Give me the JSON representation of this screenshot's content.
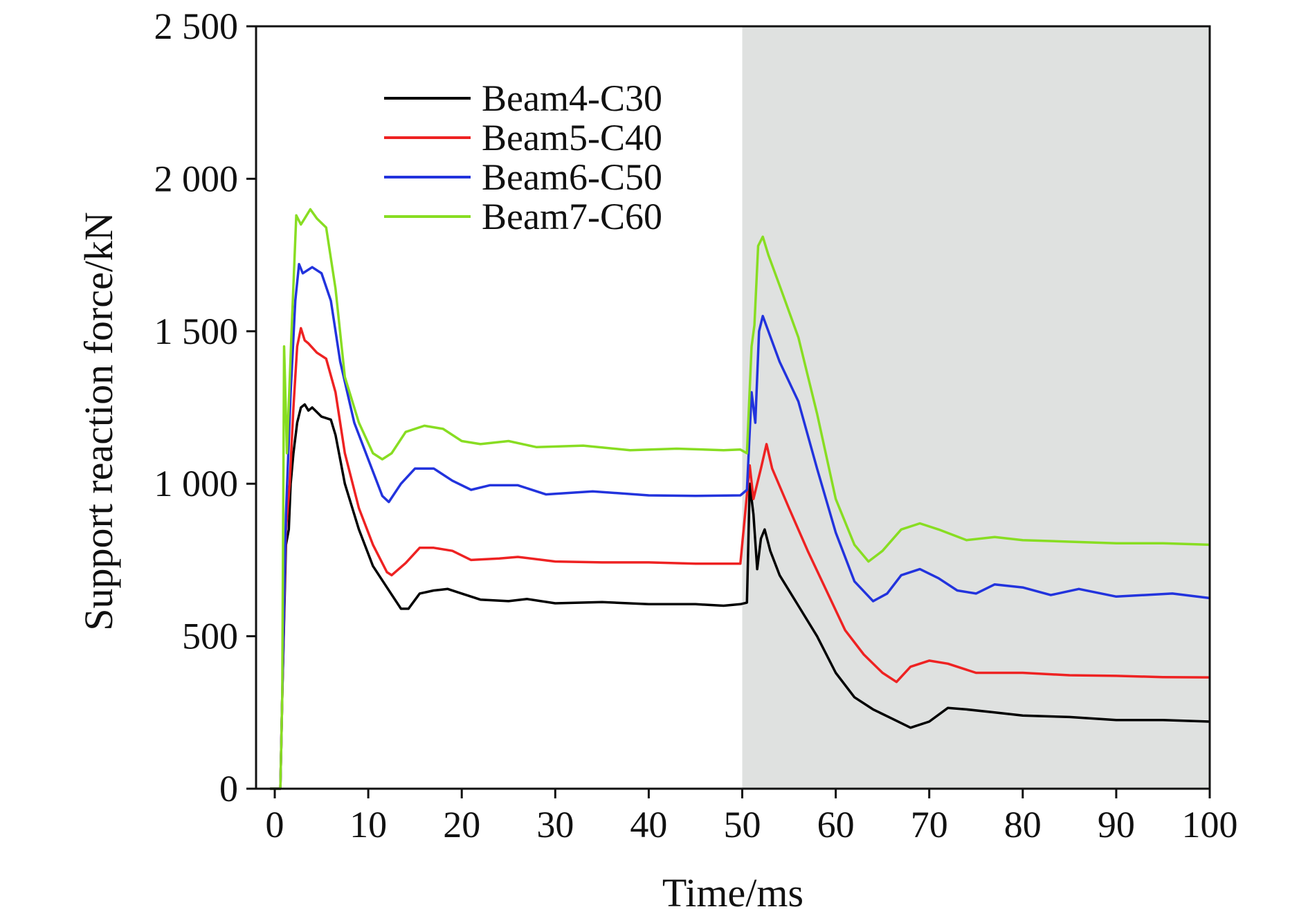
{
  "chart_data": {
    "type": "line",
    "xlabel": "Time/ms",
    "ylabel": "Support reaction force/kN",
    "xlim": [
      -2,
      100
    ],
    "ylim": [
      0,
      2500
    ],
    "x_ticks": [
      0,
      10,
      20,
      30,
      40,
      50,
      60,
      70,
      80,
      90,
      100
    ],
    "y_ticks": [
      0,
      500,
      1000,
      1500,
      2000,
      2500
    ],
    "y_tick_labels": [
      "0",
      "500",
      "1 000",
      "1 500",
      "2 000",
      "2 500"
    ],
    "shaded_region": {
      "x_start": 50,
      "x_end": 100,
      "color": "#dfe1e0"
    },
    "legend_position": "top-left",
    "grid": false,
    "series": [
      {
        "name": "Beam4-C30",
        "color": "#000000",
        "points": [
          [
            -0.5,
            0
          ],
          [
            0.6,
            0
          ],
          [
            0.8,
            300
          ],
          [
            1.2,
            800
          ],
          [
            1.5,
            850
          ],
          [
            1.7,
            1000
          ],
          [
            2.0,
            1100
          ],
          [
            2.4,
            1200
          ],
          [
            2.8,
            1250
          ],
          [
            3.2,
            1260
          ],
          [
            3.6,
            1240
          ],
          [
            4.0,
            1250
          ],
          [
            5.0,
            1220
          ],
          [
            6.0,
            1210
          ],
          [
            6.5,
            1160
          ],
          [
            7.5,
            1000
          ],
          [
            9.0,
            850
          ],
          [
            10.5,
            730
          ],
          [
            12.0,
            660
          ],
          [
            13.5,
            590
          ],
          [
            14.3,
            590
          ],
          [
            15.5,
            640
          ],
          [
            17.0,
            650
          ],
          [
            18.5,
            655
          ],
          [
            20.0,
            640
          ],
          [
            22.0,
            620
          ],
          [
            25.0,
            615
          ],
          [
            27.0,
            622
          ],
          [
            30.0,
            608
          ],
          [
            35.0,
            612
          ],
          [
            40.0,
            605
          ],
          [
            45.0,
            605
          ],
          [
            48.0,
            600
          ],
          [
            49.8,
            605
          ],
          [
            50.5,
            610
          ],
          [
            50.8,
            1000
          ],
          [
            51.2,
            900
          ],
          [
            51.6,
            720
          ],
          [
            52.0,
            820
          ],
          [
            52.4,
            850
          ],
          [
            53.0,
            780
          ],
          [
            54.0,
            700
          ],
          [
            56.0,
            600
          ],
          [
            58.0,
            500
          ],
          [
            60.0,
            380
          ],
          [
            62.0,
            300
          ],
          [
            64.0,
            260
          ],
          [
            66.0,
            230
          ],
          [
            68.0,
            200
          ],
          [
            70.0,
            220
          ],
          [
            72.0,
            265
          ],
          [
            74.0,
            260
          ],
          [
            77.0,
            250
          ],
          [
            80.0,
            240
          ],
          [
            85.0,
            235
          ],
          [
            90.0,
            225
          ],
          [
            95.0,
            225
          ],
          [
            100.0,
            220
          ]
        ]
      },
      {
        "name": "Beam5-C40",
        "color": "#ee2222",
        "points": [
          [
            -0.5,
            0
          ],
          [
            0.6,
            0
          ],
          [
            0.8,
            300
          ],
          [
            1.2,
            850
          ],
          [
            1.6,
            1000
          ],
          [
            2.0,
            1250
          ],
          [
            2.4,
            1450
          ],
          [
            2.8,
            1510
          ],
          [
            3.2,
            1470
          ],
          [
            3.6,
            1460
          ],
          [
            4.5,
            1430
          ],
          [
            5.5,
            1410
          ],
          [
            6.5,
            1300
          ],
          [
            7.5,
            1100
          ],
          [
            9.0,
            920
          ],
          [
            10.5,
            800
          ],
          [
            12.0,
            710
          ],
          [
            12.5,
            700
          ],
          [
            14.0,
            740
          ],
          [
            15.5,
            790
          ],
          [
            17.0,
            790
          ],
          [
            19.0,
            780
          ],
          [
            21.0,
            750
          ],
          [
            24.0,
            755
          ],
          [
            26.0,
            760
          ],
          [
            30.0,
            745
          ],
          [
            35.0,
            742
          ],
          [
            40.0,
            742
          ],
          [
            45.0,
            738
          ],
          [
            49.8,
            738
          ],
          [
            50.8,
            1060
          ],
          [
            51.2,
            950
          ],
          [
            51.6,
            1000
          ],
          [
            52.0,
            1050
          ],
          [
            52.6,
            1130
          ],
          [
            53.2,
            1050
          ],
          [
            55.0,
            920
          ],
          [
            57.0,
            780
          ],
          [
            59.0,
            650
          ],
          [
            61.0,
            520
          ],
          [
            63.0,
            440
          ],
          [
            65.0,
            380
          ],
          [
            66.5,
            350
          ],
          [
            68.0,
            400
          ],
          [
            70.0,
            420
          ],
          [
            72.0,
            410
          ],
          [
            75.0,
            380
          ],
          [
            80.0,
            380
          ],
          [
            85.0,
            372
          ],
          [
            90.0,
            370
          ],
          [
            95.0,
            366
          ],
          [
            100.0,
            365
          ]
        ]
      },
      {
        "name": "Beam6-C50",
        "color": "#2233dd",
        "points": [
          [
            -0.5,
            0
          ],
          [
            0.6,
            0
          ],
          [
            0.8,
            300
          ],
          [
            1.2,
            900
          ],
          [
            1.7,
            1300
          ],
          [
            2.2,
            1600
          ],
          [
            2.6,
            1720
          ],
          [
            3.0,
            1690
          ],
          [
            3.5,
            1700
          ],
          [
            4.0,
            1710
          ],
          [
            5.0,
            1690
          ],
          [
            6.0,
            1600
          ],
          [
            7.0,
            1400
          ],
          [
            8.5,
            1200
          ],
          [
            10.0,
            1080
          ],
          [
            11.5,
            960
          ],
          [
            12.2,
            940
          ],
          [
            13.5,
            1000
          ],
          [
            15.0,
            1050
          ],
          [
            17.0,
            1050
          ],
          [
            19.0,
            1010
          ],
          [
            21.0,
            980
          ],
          [
            23.0,
            995
          ],
          [
            26.0,
            995
          ],
          [
            29.0,
            965
          ],
          [
            34.0,
            975
          ],
          [
            40.0,
            962
          ],
          [
            45.0,
            960
          ],
          [
            49.8,
            962
          ],
          [
            50.5,
            980
          ],
          [
            51.0,
            1300
          ],
          [
            51.4,
            1200
          ],
          [
            51.8,
            1500
          ],
          [
            52.2,
            1550
          ],
          [
            52.8,
            1500
          ],
          [
            54.0,
            1400
          ],
          [
            56.0,
            1270
          ],
          [
            58.0,
            1050
          ],
          [
            60.0,
            840
          ],
          [
            62.0,
            680
          ],
          [
            64.0,
            615
          ],
          [
            65.5,
            640
          ],
          [
            67.0,
            700
          ],
          [
            69.0,
            720
          ],
          [
            71.0,
            690
          ],
          [
            73.0,
            650
          ],
          [
            75.0,
            640
          ],
          [
            77.0,
            670
          ],
          [
            80.0,
            660
          ],
          [
            83.0,
            635
          ],
          [
            86.0,
            655
          ],
          [
            90.0,
            630
          ],
          [
            93.0,
            635
          ],
          [
            96.0,
            640
          ],
          [
            100.0,
            625
          ]
        ]
      },
      {
        "name": "Beam7-C60",
        "color": "#88dd22",
        "points": [
          [
            -0.5,
            0
          ],
          [
            0.6,
            0
          ],
          [
            0.8,
            300
          ],
          [
            1.0,
            1450
          ],
          [
            1.3,
            1100
          ],
          [
            1.8,
            1500
          ],
          [
            2.3,
            1880
          ],
          [
            2.8,
            1850
          ],
          [
            3.2,
            1870
          ],
          [
            3.8,
            1900
          ],
          [
            4.5,
            1870
          ],
          [
            5.5,
            1840
          ],
          [
            6.5,
            1640
          ],
          [
            7.5,
            1350
          ],
          [
            9.0,
            1200
          ],
          [
            10.5,
            1100
          ],
          [
            11.5,
            1080
          ],
          [
            12.5,
            1100
          ],
          [
            14.0,
            1170
          ],
          [
            16.0,
            1190
          ],
          [
            18.0,
            1180
          ],
          [
            20.0,
            1140
          ],
          [
            22.0,
            1130
          ],
          [
            25.0,
            1140
          ],
          [
            28.0,
            1120
          ],
          [
            33.0,
            1125
          ],
          [
            38.0,
            1110
          ],
          [
            43.0,
            1115
          ],
          [
            48.0,
            1110
          ],
          [
            49.8,
            1112
          ],
          [
            50.5,
            1100
          ],
          [
            51.0,
            1450
          ],
          [
            51.3,
            1520
          ],
          [
            51.7,
            1780
          ],
          [
            52.2,
            1810
          ],
          [
            52.8,
            1750
          ],
          [
            54.0,
            1650
          ],
          [
            56.0,
            1480
          ],
          [
            58.0,
            1230
          ],
          [
            60.0,
            950
          ],
          [
            62.0,
            800
          ],
          [
            63.5,
            745
          ],
          [
            65.0,
            780
          ],
          [
            67.0,
            850
          ],
          [
            69.0,
            870
          ],
          [
            71.0,
            850
          ],
          [
            74.0,
            815
          ],
          [
            77.0,
            825
          ],
          [
            80.0,
            815
          ],
          [
            85.0,
            810
          ],
          [
            90.0,
            805
          ],
          [
            95.0,
            805
          ],
          [
            100.0,
            800
          ]
        ]
      }
    ]
  }
}
